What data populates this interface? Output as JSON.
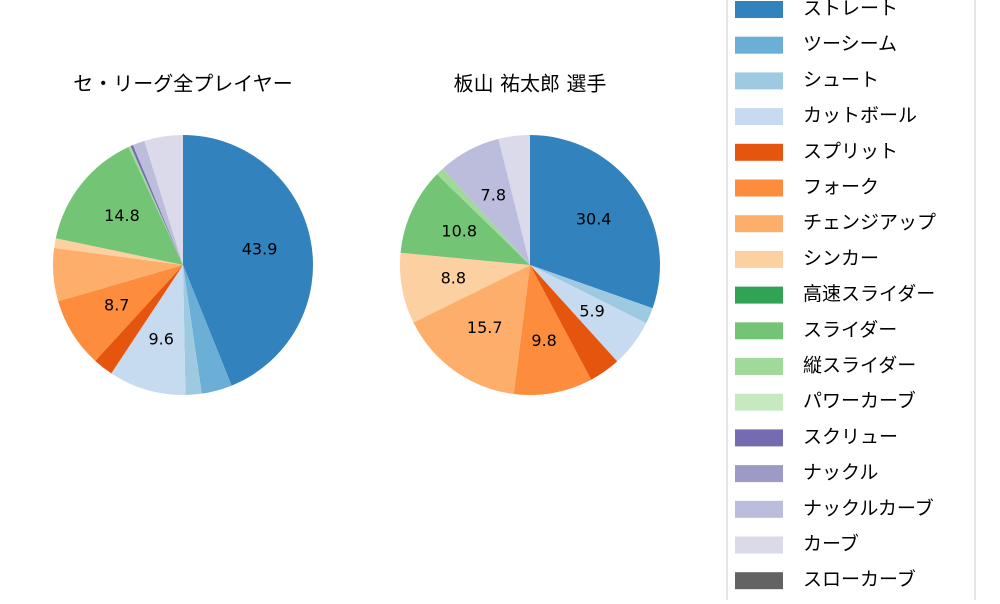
{
  "chart_data": [
    {
      "type": "pie",
      "title": "セ・リーグ全プレイヤー",
      "categories": [
        "ストレート",
        "ツーシーム",
        "シュート",
        "カットボール",
        "スプリット",
        "フォーク",
        "チェンジアップ",
        "シンカー",
        "スライダー",
        "縦スライダー",
        "スクリュー",
        "ナックルカーブ",
        "カーブ"
      ],
      "values": [
        43.9,
        3.8,
        2.0,
        9.6,
        2.5,
        8.7,
        6.6,
        1.2,
        14.8,
        0.3,
        0.3,
        1.5,
        4.8
      ],
      "value_labels": [
        "43.9",
        null,
        null,
        "9.6",
        null,
        "8.7",
        null,
        null,
        "14.8",
        null,
        null,
        null,
        null
      ]
    },
    {
      "type": "pie",
      "title": "板山 祐太郎  選手",
      "categories": [
        "ストレート",
        "シュート",
        "カットボール",
        "スプリット",
        "フォーク",
        "チェンジアップ",
        "シンカー",
        "スライダー",
        "縦スライダー",
        "ナックルカーブ",
        "カーブ"
      ],
      "values": [
        30.4,
        2.0,
        5.9,
        3.9,
        9.8,
        15.7,
        8.8,
        10.8,
        1.0,
        7.8,
        3.9
      ],
      "value_labels": [
        "30.4",
        null,
        "5.9",
        null,
        "9.8",
        "15.7",
        "8.8",
        "10.8",
        null,
        "7.8",
        null
      ]
    }
  ],
  "legend": {
    "labels": [
      "ストレート",
      "ツーシーム",
      "シュート",
      "カットボール",
      "スプリット",
      "フォーク",
      "チェンジアップ",
      "シンカー",
      "高速スライダー",
      "スライダー",
      "縦スライダー",
      "パワーカーブ",
      "スクリュー",
      "ナックル",
      "ナックルカーブ",
      "カーブ",
      "スローカーブ"
    ],
    "colors": [
      "#3182bd",
      "#6baed6",
      "#9ecae1",
      "#c6dbef",
      "#e6550d",
      "#fd8d3c",
      "#fdae6b",
      "#fdd0a2",
      "#31a354",
      "#74c476",
      "#a1d99b",
      "#c7e9c0",
      "#756bb1",
      "#9e9ac8",
      "#bcbddc",
      "#dadaeb",
      "#636363"
    ]
  }
}
